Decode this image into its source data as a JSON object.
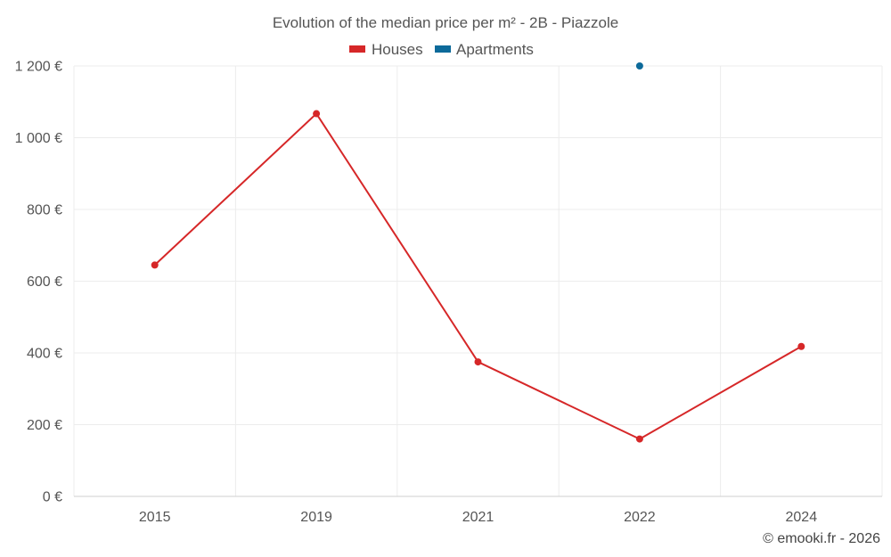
{
  "chart_data": {
    "type": "line",
    "title": "Evolution of the median price per m² - 2B - Piazzole",
    "categories": [
      "2015",
      "2019",
      "2021",
      "2022",
      "2024"
    ],
    "ylim": [
      0,
      1200
    ],
    "yticks": [
      0,
      200,
      400,
      600,
      800,
      1000,
      1200
    ],
    "ytick_labels": [
      "0 €",
      "200 €",
      "400 €",
      "600 €",
      "800 €",
      "1 000 €",
      "1 200 €"
    ],
    "grid": true,
    "legend_position": "top-center",
    "series": [
      {
        "name": "Houses",
        "color": "#d62728",
        "values": [
          645,
          1067,
          375,
          160,
          418
        ]
      },
      {
        "name": "Apartments",
        "color": "#0d6a9a",
        "values": [
          null,
          null,
          null,
          1200,
          null
        ]
      }
    ],
    "credit": "© emooki.fr - 2026"
  }
}
